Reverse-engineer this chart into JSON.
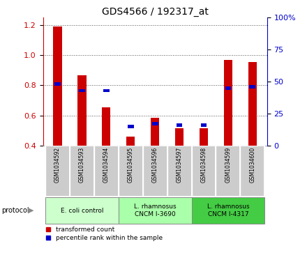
{
  "title": "GDS4566 / 192317_at",
  "samples": [
    "GSM1034592",
    "GSM1034593",
    "GSM1034594",
    "GSM1034595",
    "GSM1034596",
    "GSM1034597",
    "GSM1034598",
    "GSM1034599",
    "GSM1034600"
  ],
  "red_values": [
    1.19,
    0.865,
    0.655,
    0.46,
    0.583,
    0.513,
    0.515,
    0.97,
    0.955
  ],
  "blue_values_pct": [
    48,
    43,
    43,
    15,
    17,
    16,
    16,
    45,
    46
  ],
  "ylim_left": [
    0.4,
    1.25
  ],
  "ylim_right": [
    0,
    100
  ],
  "yticks_left": [
    0.4,
    0.6,
    0.8,
    1.0,
    1.2
  ],
  "yticks_right": [
    0,
    25,
    50,
    75,
    100
  ],
  "red_color": "#cc0000",
  "blue_color": "#0000cc",
  "bar_bottom": 0.4,
  "protocol_groups": [
    {
      "label": "E. coli control",
      "start": 0,
      "end": 3,
      "color": "#ccffcc"
    },
    {
      "label": "L. rhamnosus\nCNCM I-3690",
      "start": 3,
      "end": 6,
      "color": "#aaffaa"
    },
    {
      "label": "L. rhamnosus\nCNCM I-4317",
      "start": 6,
      "end": 9,
      "color": "#44cc44"
    }
  ],
  "protocol_label": "protocol",
  "legend_red": "transformed count",
  "legend_blue": "percentile rank within the sample",
  "tick_label_color_left": "#cc0000",
  "tick_label_color_right": "#0000cc",
  "grid_color": "#555555",
  "bg_color": "#ffffff",
  "sample_bg": "#cccccc"
}
